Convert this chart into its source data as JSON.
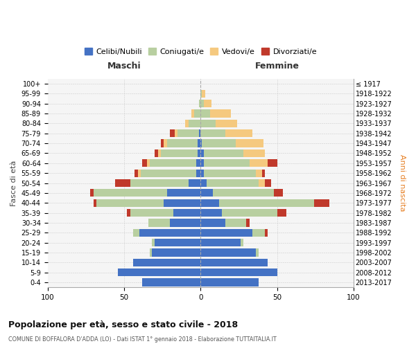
{
  "age_groups": [
    "0-4",
    "5-9",
    "10-14",
    "15-19",
    "20-24",
    "25-29",
    "30-34",
    "35-39",
    "40-44",
    "45-49",
    "50-54",
    "55-59",
    "60-64",
    "65-69",
    "70-74",
    "75-79",
    "80-84",
    "85-89",
    "90-94",
    "95-99",
    "100+"
  ],
  "birth_years": [
    "2013-2017",
    "2008-2012",
    "2003-2007",
    "1998-2002",
    "1993-1997",
    "1988-1992",
    "1983-1987",
    "1978-1982",
    "1973-1977",
    "1968-1972",
    "1963-1967",
    "1958-1962",
    "1953-1957",
    "1948-1952",
    "1943-1947",
    "1938-1942",
    "1933-1937",
    "1928-1932",
    "1923-1927",
    "1918-1922",
    "≤ 1917"
  ],
  "maschi": {
    "celibi": [
      38,
      54,
      44,
      32,
      30,
      40,
      20,
      18,
      24,
      22,
      8,
      3,
      3,
      2,
      2,
      1,
      0,
      0,
      0,
      0,
      0
    ],
    "coniugati": [
      0,
      0,
      0,
      1,
      2,
      4,
      14,
      28,
      44,
      48,
      38,
      36,
      30,
      24,
      20,
      14,
      8,
      4,
      1,
      0,
      0
    ],
    "vedovi": [
      0,
      0,
      0,
      0,
      0,
      0,
      0,
      0,
      0,
      0,
      0,
      2,
      2,
      2,
      2,
      2,
      2,
      2,
      0,
      0,
      0
    ],
    "divorziati": [
      0,
      0,
      0,
      0,
      0,
      0,
      0,
      2,
      2,
      2,
      10,
      2,
      3,
      2,
      2,
      3,
      0,
      0,
      0,
      0,
      0
    ]
  },
  "femmine": {
    "nubili": [
      38,
      50,
      44,
      36,
      26,
      34,
      16,
      14,
      12,
      8,
      4,
      2,
      2,
      2,
      1,
      0,
      0,
      0,
      0,
      0,
      0
    ],
    "coniugate": [
      0,
      0,
      0,
      2,
      2,
      8,
      14,
      36,
      62,
      40,
      34,
      34,
      30,
      26,
      22,
      16,
      10,
      6,
      2,
      1,
      0
    ],
    "vedove": [
      0,
      0,
      0,
      0,
      0,
      0,
      0,
      0,
      0,
      0,
      4,
      4,
      12,
      14,
      18,
      18,
      14,
      14,
      5,
      2,
      0
    ],
    "divorziate": [
      0,
      0,
      0,
      0,
      0,
      2,
      2,
      6,
      10,
      6,
      4,
      2,
      6,
      0,
      0,
      0,
      0,
      0,
      0,
      0,
      0
    ]
  },
  "colors": {
    "celibi": "#4472c4",
    "coniugati": "#b8cfa0",
    "vedovi": "#f5c97f",
    "divorziati": "#c0392b"
  },
  "legend_labels": [
    "Celibi/Nubili",
    "Coniugati/e",
    "Vedovi/e",
    "Divorziati/e"
  ],
  "title": "Popolazione per età, sesso e stato civile - 2018",
  "subtitle": "COMUNE DI BOFFALORA D'ADDA (LO) - Dati ISTAT 1° gennaio 2018 - Elaborazione TUTTAITALIA.IT",
  "xlabel_left": "Maschi",
  "xlabel_right": "Femmine",
  "ylabel_left": "Fasce di età",
  "ylabel_right": "Anni di nascita",
  "xlim": 100,
  "bg_color": "#ffffff",
  "grid_color": "#cccccc"
}
